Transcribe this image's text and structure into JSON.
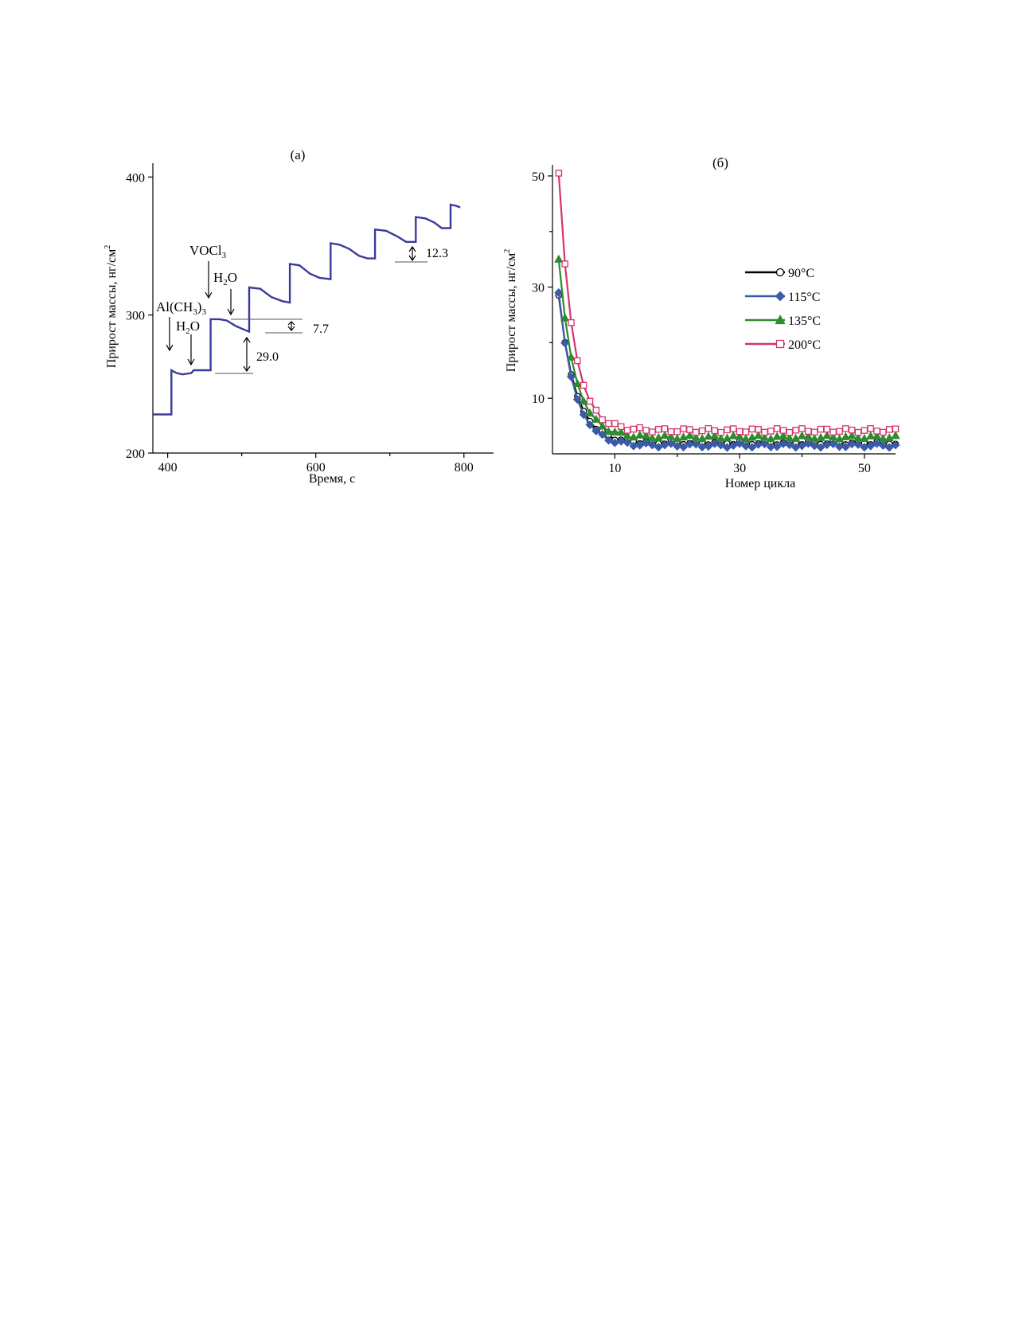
{
  "chart_data": [
    {
      "id": "a",
      "type": "line",
      "panel_label": "(a)",
      "xlabel": "Время, с",
      "ylabel": "Прирост массы, нг/см",
      "ylabel_sup": "2",
      "xlim": [
        380,
        840
      ],
      "ylim": [
        200,
        410
      ],
      "xticks": [
        400,
        600,
        800
      ],
      "yticks": [
        200,
        300,
        400
      ],
      "line_color": "#3a3a9c",
      "series": [
        {
          "values": [
            [
              380,
              228
            ],
            [
              405,
              228
            ],
            [
              405,
              260
            ],
            [
              412,
              258
            ],
            [
              420,
              257
            ],
            [
              432,
              258
            ],
            [
              435,
              260
            ],
            [
              442,
              260
            ],
            [
              458,
              260
            ],
            [
              458,
              297
            ],
            [
              470,
              297
            ],
            [
              480,
              296
            ],
            [
              492,
              292
            ],
            [
              505,
              289
            ],
            [
              510,
              288
            ],
            [
              510,
              320
            ],
            [
              525,
              319
            ],
            [
              540,
              313
            ],
            [
              555,
              310
            ],
            [
              565,
              309
            ],
            [
              565,
              337
            ],
            [
              578,
              336
            ],
            [
              592,
              330
            ],
            [
              605,
              327
            ],
            [
              620,
              326
            ],
            [
              620,
              352
            ],
            [
              632,
              351
            ],
            [
              645,
              348
            ],
            [
              658,
              343
            ],
            [
              670,
              341
            ],
            [
              680,
              341
            ],
            [
              680,
              362
            ],
            [
              695,
              361
            ],
            [
              710,
              357
            ],
            [
              722,
              353
            ],
            [
              735,
              353
            ],
            [
              735,
              371
            ],
            [
              748,
              370
            ],
            [
              760,
              367
            ],
            [
              770,
              363
            ],
            [
              780,
              363
            ],
            [
              782,
              363
            ],
            [
              782,
              380
            ],
            [
              790,
              379
            ],
            [
              795,
              378
            ]
          ]
        }
      ],
      "annotations": [
        {
          "id": "al",
          "parts": [
            "Al(CH",
            "3",
            ")",
            "3"
          ]
        },
        {
          "id": "h2o-1",
          "parts": [
            "H",
            "2",
            "O"
          ]
        },
        {
          "id": "vocl",
          "parts": [
            "VOCl",
            "3"
          ]
        },
        {
          "id": "h2o-2",
          "parts": [
            "H",
            "2",
            "O"
          ]
        },
        {
          "id": "d1",
          "text": "29.0"
        },
        {
          "id": "d2",
          "text": "7.7"
        },
        {
          "id": "d3",
          "text": "12.3"
        }
      ]
    },
    {
      "id": "b",
      "type": "scatter",
      "panel_label": "(б)",
      "xlabel": "Номер цикла",
      "ylabel": "Прирост массы, нг/см",
      "ylabel_sup": "2",
      "xlim": [
        0,
        55
      ],
      "ylim": [
        0,
        52
      ],
      "xticks": [
        10,
        30,
        50
      ],
      "yticks": [
        10,
        30,
        50
      ],
      "series": [
        {
          "name": "90°C",
          "marker": "circle",
          "color": "#000000",
          "fill": "#ffffff",
          "start": 28.5,
          "floor": 2.0,
          "decay": 2.6,
          "noise": 0.35
        },
        {
          "name": "115°C",
          "marker": "diamond",
          "color": "#3b5ba8",
          "fill": "#3b5ba8",
          "start": 29.0,
          "floor": 1.5,
          "decay": 2.5,
          "noise": 0.35
        },
        {
          "name": "135°C",
          "marker": "triangle",
          "color": "#2e8b2e",
          "fill": "#2e8b2e",
          "start": 35.0,
          "floor": 3.0,
          "decay": 2.5,
          "noise": 0.3
        },
        {
          "name": "200°C",
          "marker": "square",
          "color": "#d6336c",
          "fill": "#ffffff",
          "start": 50.5,
          "floor": 4.2,
          "decay": 2.3,
          "noise": 0.35
        }
      ],
      "legend_position": "right"
    }
  ]
}
